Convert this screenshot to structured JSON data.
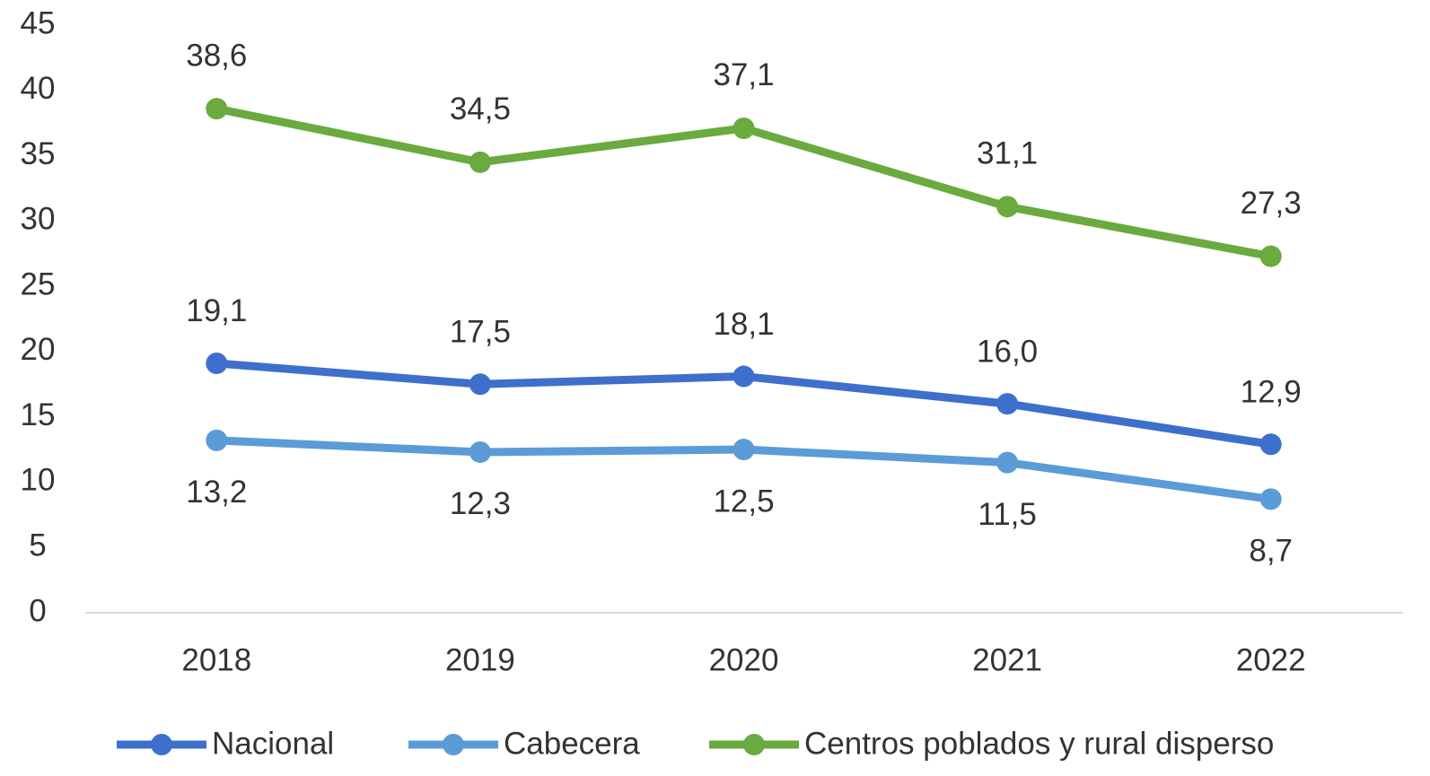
{
  "chart_data": {
    "type": "line",
    "categories": [
      "2018",
      "2019",
      "2020",
      "2021",
      "2022"
    ],
    "series": [
      {
        "name": "Nacional",
        "color": "#3e6fcc",
        "values": [
          19.1,
          17.5,
          18.1,
          16.0,
          12.9
        ],
        "value_labels": [
          "19,1",
          "17,5",
          "18,1",
          "16,0",
          "12,9"
        ]
      },
      {
        "name": "Cabecera",
        "color": "#5b9bd8",
        "values": [
          13.2,
          12.3,
          12.5,
          11.5,
          8.7
        ],
        "value_labels": [
          "13,2",
          "12,3",
          "12,5",
          "11,5",
          "8,7"
        ]
      },
      {
        "name": "Centros poblados y rural disperso",
        "color": "#6aaa3f",
        "values": [
          38.6,
          34.5,
          37.1,
          31.1,
          27.3
        ],
        "value_labels": [
          "38,6",
          "34,5",
          "37,1",
          "31,1",
          "27,3"
        ]
      }
    ],
    "ylim": [
      0,
      45
    ],
    "yticks": [
      0,
      5,
      10,
      15,
      20,
      25,
      30,
      35,
      40,
      45
    ],
    "grid": false,
    "legend": "bottom"
  }
}
